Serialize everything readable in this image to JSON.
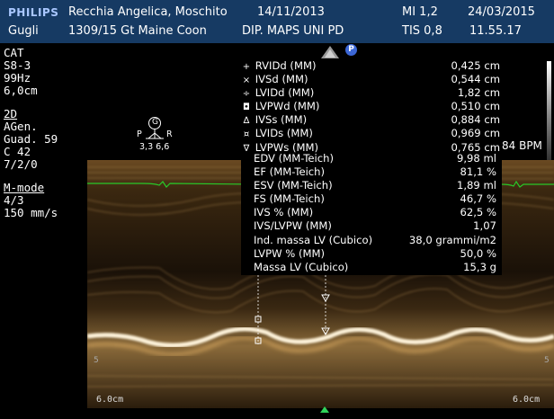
{
  "header": {
    "brand": "PHILIPS",
    "patient": "Recchia Angelica, Moschito",
    "exam_date": "14/11/2013",
    "mi": "MI 1,2",
    "current_date": "24/03/2015",
    "operator": "Gugli",
    "patient_id": "1309/15 Gt Maine Coon",
    "institution": "DIP. MAPS UNI PD",
    "tis": "TIS 0,8",
    "time": "11.55.17"
  },
  "left_panel": {
    "preset": "CAT",
    "probe": "S8-3",
    "frame_rate": "99Hz",
    "depth": "6,0cm",
    "mode_2d": "2D",
    "agen": "AGen.",
    "gain": "Guad. 59",
    "compression": "C 42",
    "persistence": "7/2/0",
    "mode_m": "M-mode",
    "m_ratio": "4/3",
    "sweep": "150 mm/s"
  },
  "probe_badge": "P",
  "focus": {
    "label_top": "G",
    "left": "P",
    "right": "R",
    "values": "3,3 6,6"
  },
  "measurements": [
    {
      "sym": "+",
      "label": "RVIDd (MM)",
      "value": "0,425 cm"
    },
    {
      "sym": "×",
      "label": "IVSd (MM)",
      "value": "0,544 cm"
    },
    {
      "sym": "÷",
      "label": "LVIDd (MM)",
      "value": "1,82 cm"
    },
    {
      "sym": "◘",
      "label": "LVPWd (MM)",
      "value": "0,510 cm"
    },
    {
      "sym": "∆",
      "label": "IVSs (MM)",
      "value": "0,884 cm"
    },
    {
      "sym": "¤",
      "label": "LVIDs (MM)",
      "value": "0,969 cm"
    },
    {
      "sym": "∇",
      "label": "LVPWs (MM)",
      "value": "0,765 cm"
    }
  ],
  "calculations": [
    {
      "label": "EDV (MM-Teich)",
      "value": "9,98 ml"
    },
    {
      "label": "EF (MM-Teich)",
      "value": "81,1 %"
    },
    {
      "label": "ESV (MM-Teich)",
      "value": "1,89 ml"
    },
    {
      "label": "FS (MM-Teich)",
      "value": "46,7 %"
    },
    {
      "label": "IVS % (MM)",
      "value": "62,5 %"
    },
    {
      "label": "IVS/LVPW (MM)",
      "value": "1,07"
    },
    {
      "label": "Ind. massa LV (Cubico)",
      "value": "38,0 grammi/m2"
    },
    {
      "label": "LVPW % (MM)",
      "value": "50,0 %"
    },
    {
      "label": "Massa LV (Cubico)",
      "value": "15,3 g"
    }
  ],
  "heart_rate": "84 BPM",
  "depth_left": "6.0cm",
  "depth_right": "6.0cm",
  "tick_left": "5",
  "tick_right": "5",
  "colors": {
    "header_bg": "#163a63",
    "ecg": "#28c828",
    "marker": "#2fd35a",
    "echo": "#c89650"
  }
}
